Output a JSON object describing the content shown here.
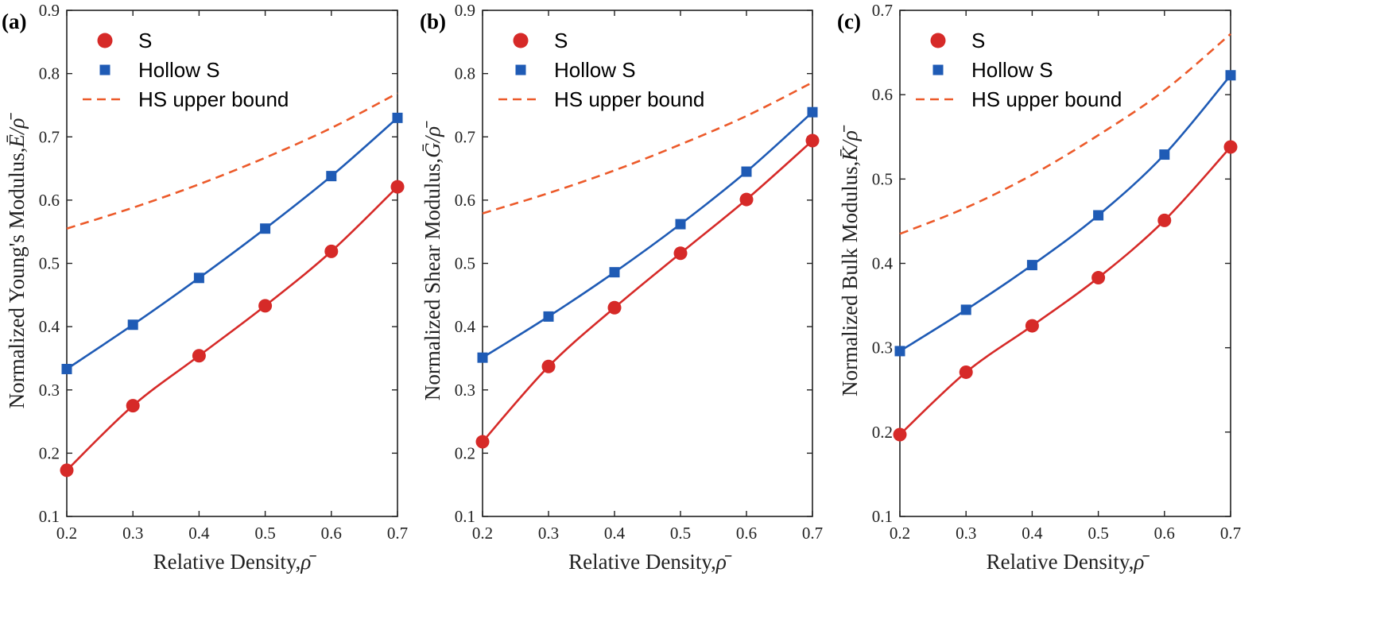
{
  "chart_data": [
    {
      "panel": "(a)",
      "type": "line",
      "x": [
        0.2,
        0.3,
        0.4,
        0.5,
        0.6,
        0.7
      ],
      "series": [
        {
          "name": "S",
          "marker": "circle",
          "color": "#d62a28",
          "values": [
            0.173,
            0.275,
            0.354,
            0.433,
            0.519,
            0.621
          ]
        },
        {
          "name": "Hollow S",
          "marker": "square",
          "color": "#1f5bb5",
          "values": [
            0.333,
            0.403,
            0.477,
            0.555,
            0.638,
            0.73
          ]
        },
        {
          "name": "HS upper bound",
          "marker": "none",
          "style": "dashed",
          "color": "#ec5a2a",
          "values": [
            0.555,
            0.588,
            0.625,
            0.667,
            0.714,
            0.769
          ]
        }
      ],
      "xlabel": "Relative Density,",
      "xlabel_symbol": "ρ̄",
      "ylabel": "Normalized Young's Modulus,",
      "ylabel_symbol": "Ē/ρ̄",
      "xlim": [
        0.2,
        0.7
      ],
      "ylim": [
        0.1,
        0.9
      ],
      "xticks": [
        "0.2",
        "0.3",
        "0.4",
        "0.5",
        "0.6",
        "0.7"
      ],
      "yticks": [
        "0.1",
        "0.2",
        "0.3",
        "0.4",
        "0.5",
        "0.6",
        "0.7",
        "0.8",
        "0.9"
      ],
      "legend_position": "top-left"
    },
    {
      "panel": "(b)",
      "type": "line",
      "x": [
        0.2,
        0.3,
        0.4,
        0.5,
        0.6,
        0.7
      ],
      "series": [
        {
          "name": "S",
          "marker": "circle",
          "color": "#d62a28",
          "values": [
            0.218,
            0.337,
            0.43,
            0.516,
            0.601,
            0.694
          ]
        },
        {
          "name": "Hollow S",
          "marker": "square",
          "color": "#1f5bb5",
          "values": [
            0.351,
            0.416,
            0.486,
            0.562,
            0.645,
            0.739
          ]
        },
        {
          "name": "HS upper bound",
          "marker": "none",
          "style": "dashed",
          "color": "#ec5a2a",
          "values": [
            0.579,
            0.611,
            0.647,
            0.688,
            0.733,
            0.786
          ]
        }
      ],
      "xlabel": "Relative Density,",
      "xlabel_symbol": "ρ̄",
      "ylabel": "Normalized Shear Modulus,",
      "ylabel_symbol": "Ḡ/ρ̄",
      "xlim": [
        0.2,
        0.7
      ],
      "ylim": [
        0.1,
        0.9
      ],
      "xticks": [
        "0.2",
        "0.3",
        "0.4",
        "0.5",
        "0.6",
        "0.7"
      ],
      "yticks": [
        "0.1",
        "0.2",
        "0.3",
        "0.4",
        "0.5",
        "0.6",
        "0.7",
        "0.8",
        "0.9"
      ],
      "legend_position": "top-left"
    },
    {
      "panel": "(c)",
      "type": "line",
      "x": [
        0.2,
        0.3,
        0.4,
        0.5,
        0.6,
        0.7
      ],
      "series": [
        {
          "name": "S",
          "marker": "circle",
          "color": "#d62a28",
          "values": [
            0.197,
            0.271,
            0.326,
            0.383,
            0.451,
            0.538
          ]
        },
        {
          "name": "Hollow S",
          "marker": "square",
          "color": "#1f5bb5",
          "values": [
            0.296,
            0.345,
            0.398,
            0.457,
            0.529,
            0.623
          ]
        },
        {
          "name": "HS upper bound",
          "marker": "none",
          "style": "dashed",
          "color": "#ec5a2a",
          "values": [
            0.435,
            0.466,
            0.505,
            0.552,
            0.605,
            0.672
          ]
        }
      ],
      "xlabel": "Relative Density,",
      "xlabel_symbol": "ρ̄",
      "ylabel": "Normalized Bulk Modulus,",
      "ylabel_symbol": "K̄/ρ̄",
      "xlim": [
        0.2,
        0.7
      ],
      "ylim": [
        0.1,
        0.7
      ],
      "xticks": [
        "0.2",
        "0.3",
        "0.4",
        "0.5",
        "0.6",
        "0.7"
      ],
      "yticks": [
        "0.1",
        "0.2",
        "0.3",
        "0.4",
        "0.5",
        "0.6",
        "0.7"
      ],
      "legend_position": "top-left"
    }
  ]
}
